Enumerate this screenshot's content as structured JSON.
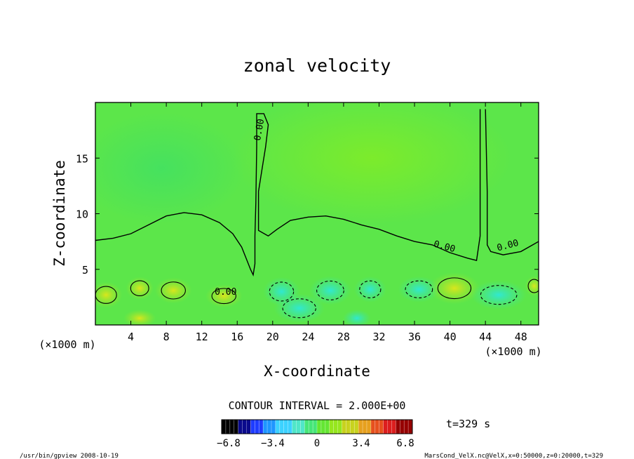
{
  "chart_data": {
    "type": "heatmap",
    "title": "zonal velocity",
    "xlabel": "X-coordinate",
    "ylabel": "Z-coordinate",
    "x_unit_left": "(×1000 m)",
    "x_unit_right": "(×1000 m)",
    "x_ticks": [
      4,
      8,
      12,
      16,
      20,
      24,
      28,
      32,
      36,
      40,
      44,
      48
    ],
    "y_ticks": [
      5,
      10,
      15
    ],
    "xlim": [
      0,
      50
    ],
    "ylim": [
      0,
      20
    ],
    "contour_interval_text": "CONTOUR INTERVAL = 2.000E+00",
    "contour_labels": [
      "0.00",
      "0.00",
      "0.00",
      "0.00"
    ],
    "zero_contour": [
      [
        0,
        7.6
      ],
      [
        2,
        7.8
      ],
      [
        4,
        8.2
      ],
      [
        6,
        9.0
      ],
      [
        8,
        9.8
      ],
      [
        10,
        10.1
      ],
      [
        12,
        9.9
      ],
      [
        14,
        9.2
      ],
      [
        15.5,
        8.2
      ],
      [
        16.5,
        7.0
      ],
      [
        17,
        6.0
      ],
      [
        17.5,
        5.0
      ],
      [
        17.8,
        4.5
      ],
      [
        18,
        5.5
      ],
      [
        18,
        8
      ],
      [
        18.1,
        11
      ],
      [
        18.2,
        16
      ],
      [
        18.2,
        19
      ],
      [
        19,
        19
      ],
      [
        19.5,
        18
      ],
      [
        19.2,
        16
      ],
      [
        18.8,
        14
      ],
      [
        18.4,
        12
      ],
      [
        18.4,
        8.5
      ],
      [
        19.5,
        8.0
      ],
      [
        20.5,
        8.6
      ],
      [
        22,
        9.4
      ],
      [
        24,
        9.7
      ],
      [
        26,
        9.8
      ],
      [
        28,
        9.5
      ],
      [
        30,
        9.0
      ],
      [
        32,
        8.6
      ],
      [
        34,
        8.0
      ],
      [
        36,
        7.5
      ],
      [
        38,
        7.2
      ],
      [
        40,
        6.5
      ],
      [
        42,
        6.0
      ],
      [
        43,
        5.8
      ],
      [
        43.4,
        8
      ],
      [
        43.4,
        12
      ],
      [
        43.4,
        19.4
      ]
    ],
    "zero_contour_right": [
      [
        44,
        19.4
      ],
      [
        44.2,
        12
      ],
      [
        44.2,
        7.2
      ],
      [
        44.6,
        6.6
      ],
      [
        46,
        6.3
      ],
      [
        48,
        6.6
      ],
      [
        50,
        7.5
      ]
    ],
    "colorbar": {
      "ticks": [
        "−6.8",
        "−3.4",
        "0",
        "3.4",
        "6.8"
      ],
      "range": [
        -6.8,
        6.8
      ],
      "colors": [
        "#000000",
        "#0a0a8c",
        "#1e3cff",
        "#1e96ff",
        "#3cd2ff",
        "#50e6c8",
        "#46e678",
        "#64e632",
        "#96e61e",
        "#c8d21e",
        "#e6a01e",
        "#e6501e",
        "#dc1e1e",
        "#960000"
      ]
    },
    "time_label": "t=329 s",
    "colors": {
      "field_base": "#5ce64a",
      "field_upper_right": "#78ea2c",
      "negative_cells": "#2ee8c8",
      "positive_cells": "#d4e61e"
    }
  },
  "footer": {
    "left": "/usr/bin/gpview   2008-10-19",
    "right": "MarsCond_VelX.nc@VelX,x=0:50000,z=0:20000,t=329"
  }
}
